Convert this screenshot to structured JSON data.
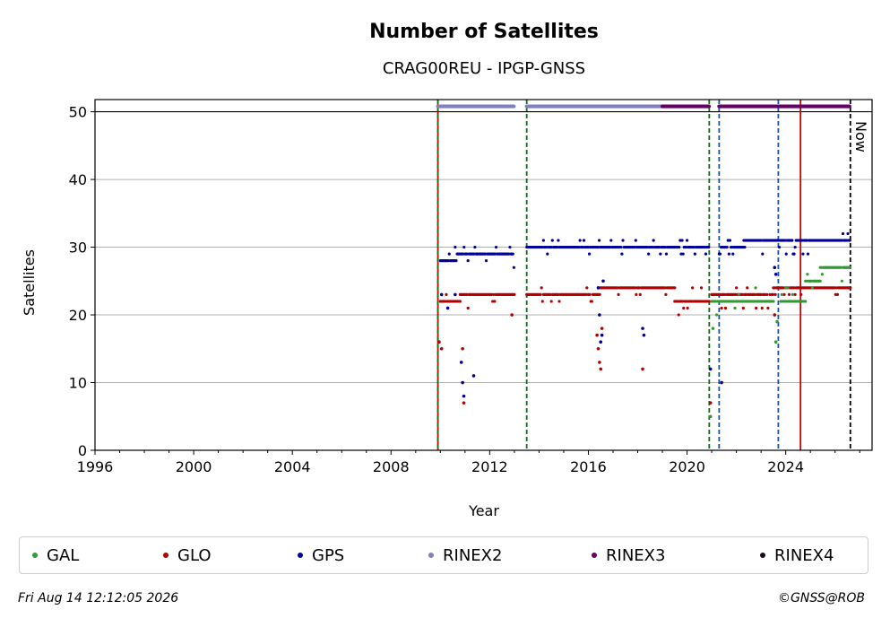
{
  "chart_data": {
    "type": "scatter",
    "title": "Number of Satellites",
    "subtitle": "CRAG00REU - IPGP-GNSS",
    "xlabel": "Year",
    "ylabel": "Satellites",
    "xlim": [
      1996,
      2027.5
    ],
    "ylim": [
      0,
      51.8
    ],
    "xticks": [
      1996,
      2000,
      2004,
      2008,
      2012,
      2016,
      2020,
      2024
    ],
    "yticks": [
      0,
      10,
      20,
      30,
      40,
      50
    ],
    "grid": "horizontal",
    "now_label": "Now",
    "now_x": 2026.62,
    "series": [
      {
        "name": "GAL",
        "color": "#339933",
        "segments": [
          {
            "start": 2021.0,
            "end": 2021.7,
            "base": 22,
            "spread": [
              20,
              23
            ]
          },
          {
            "start": 2021.7,
            "end": 2023.5,
            "base": 22,
            "spread": [
              20,
              24
            ]
          },
          {
            "start": 2023.8,
            "end": 2024.8,
            "base": 22,
            "spread": [
              22,
              24
            ]
          },
          {
            "start": 2024.8,
            "end": 2025.4,
            "base": 25,
            "spread": [
              24,
              26
            ]
          },
          {
            "start": 2025.4,
            "end": 2026.4,
            "base": 27,
            "spread": [
              25,
              28
            ]
          },
          {
            "start": 2026.4,
            "end": 2026.62,
            "base": 27,
            "spread": [
              26,
              28
            ]
          }
        ],
        "outliers": [
          [
            2020.95,
            5
          ],
          [
            2021.05,
            18
          ],
          [
            2023.6,
            16
          ],
          [
            2023.65,
            19
          ]
        ]
      },
      {
        "name": "GLO",
        "color": "#b30000",
        "segments": [
          {
            "start": 2010.0,
            "end": 2010.8,
            "base": 22,
            "spread": [
              21,
              23
            ]
          },
          {
            "start": 2010.8,
            "end": 2013.0,
            "base": 23,
            "spread": [
              21,
              24
            ]
          },
          {
            "start": 2013.5,
            "end": 2016.5,
            "base": 23,
            "spread": [
              22,
              24
            ]
          },
          {
            "start": 2016.5,
            "end": 2019.5,
            "base": 24,
            "spread": [
              23,
              24
            ]
          },
          {
            "start": 2019.5,
            "end": 2020.9,
            "base": 22,
            "spread": [
              20,
              24
            ]
          },
          {
            "start": 2021.0,
            "end": 2023.5,
            "base": 23,
            "spread": [
              21,
              24
            ]
          },
          {
            "start": 2023.5,
            "end": 2026.62,
            "base": 24,
            "spread": [
              23,
              24
            ]
          }
        ],
        "outliers": [
          [
            2009.95,
            16
          ],
          [
            2010.05,
            15
          ],
          [
            2010.9,
            15
          ],
          [
            2010.95,
            7
          ],
          [
            2012.9,
            20
          ],
          [
            2016.35,
            17
          ],
          [
            2016.4,
            15
          ],
          [
            2016.45,
            13
          ],
          [
            2016.5,
            12
          ],
          [
            2016.55,
            18
          ],
          [
            2018.2,
            12
          ],
          [
            2020.95,
            7
          ],
          [
            2023.55,
            20
          ]
        ]
      },
      {
        "name": "GPS",
        "color": "#000099",
        "segments": [
          {
            "start": 2010.0,
            "end": 2010.6,
            "base": 28,
            "spread": [
              27,
              29
            ]
          },
          {
            "start": 2010.6,
            "end": 2011.5,
            "base": 29,
            "spread": [
              28,
              30
            ]
          },
          {
            "start": 2011.5,
            "end": 2013.0,
            "base": 29,
            "spread": [
              27,
              30
            ]
          },
          {
            "start": 2013.5,
            "end": 2016.0,
            "base": 30,
            "spread": [
              29,
              31
            ]
          },
          {
            "start": 2016.0,
            "end": 2020.9,
            "base": 30,
            "spread": [
              29,
              31
            ]
          },
          {
            "start": 2021.3,
            "end": 2022.3,
            "base": 30,
            "spread": [
              29,
              31
            ]
          },
          {
            "start": 2022.3,
            "end": 2025.0,
            "base": 31,
            "spread": [
              29,
              31
            ]
          },
          {
            "start": 2025.0,
            "end": 2026.62,
            "base": 31,
            "spread": [
              30,
              32
            ]
          }
        ],
        "outliers": [
          [
            2010.05,
            23
          ],
          [
            2010.3,
            21
          ],
          [
            2010.6,
            23
          ],
          [
            2010.85,
            13
          ],
          [
            2010.9,
            10
          ],
          [
            2010.95,
            8
          ],
          [
            2011.35,
            11
          ],
          [
            2016.4,
            24
          ],
          [
            2016.45,
            20
          ],
          [
            2016.5,
            16
          ],
          [
            2016.55,
            17
          ],
          [
            2016.6,
            25
          ],
          [
            2018.2,
            18
          ],
          [
            2018.25,
            17
          ],
          [
            2020.95,
            12
          ],
          [
            2021.4,
            10
          ],
          [
            2023.55,
            27
          ],
          [
            2023.6,
            26
          ]
        ]
      },
      {
        "name": "RINEX2",
        "color": "#8080c0",
        "segments": [
          {
            "start": 2009.9,
            "end": 2013.0,
            "y": 50.8
          },
          {
            "start": 2013.5,
            "end": 2019.0,
            "y": 50.8
          }
        ]
      },
      {
        "name": "RINEX3",
        "color": "#660066",
        "segments": [
          {
            "start": 2019.0,
            "end": 2020.9,
            "y": 50.8
          },
          {
            "start": 2021.3,
            "end": 2026.62,
            "y": 50.8
          }
        ]
      },
      {
        "name": "RINEX4",
        "color": "#1a0a1a",
        "segments": []
      }
    ],
    "vlines": [
      {
        "x": 2009.9,
        "color": "#cc0000",
        "style": "solid"
      },
      {
        "x": 2009.9,
        "color": "#007700",
        "style": "dashed"
      },
      {
        "x": 2013.5,
        "color": "#007700",
        "style": "dashed"
      },
      {
        "x": 2020.9,
        "color": "#007700",
        "style": "dashed"
      },
      {
        "x": 2021.3,
        "color": "#1155aa",
        "style": "dashed"
      },
      {
        "x": 2023.7,
        "color": "#1155aa",
        "style": "dashed"
      },
      {
        "x": 2024.6,
        "color": "#cc0000",
        "style": "solid"
      },
      {
        "x": 2026.62,
        "color": "#000000",
        "style": "dashed"
      }
    ]
  },
  "legend": [
    {
      "label": "GAL",
      "color": "#339933"
    },
    {
      "label": "GLO",
      "color": "#b30000"
    },
    {
      "label": "GPS",
      "color": "#000099"
    },
    {
      "label": "RINEX2",
      "color": "#8080c0"
    },
    {
      "label": "RINEX3",
      "color": "#660066"
    },
    {
      "label": "RINEX4",
      "color": "#1a0a1a"
    }
  ],
  "footer": {
    "timestamp": "Fri Aug 14 12:12:05 2026",
    "credit": "©GNSS@ROB"
  }
}
